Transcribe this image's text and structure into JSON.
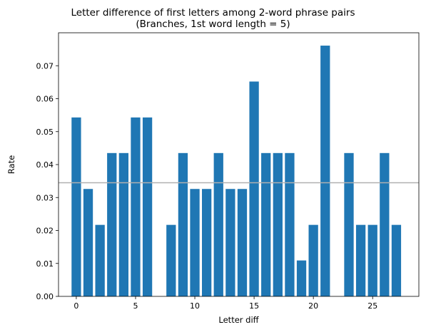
{
  "chart_data": {
    "type": "bar",
    "title_line1": "Letter difference of first letters among 2-word phrase pairs",
    "title_line2": "(Branches, 1st word length = 5)",
    "xlabel": "Letter diff",
    "ylabel": "Rate",
    "x": [
      0,
      1,
      2,
      3,
      4,
      5,
      6,
      7,
      8,
      9,
      10,
      11,
      12,
      13,
      14,
      15,
      16,
      17,
      18,
      19,
      20,
      21,
      22,
      23,
      24,
      25,
      26,
      27
    ],
    "values": [
      0.0543,
      0.0326,
      0.0217,
      0.0435,
      0.0435,
      0.0543,
      0.0543,
      0,
      0.0217,
      0.0435,
      0.0326,
      0.0326,
      0.0435,
      0.0326,
      0.0326,
      0.0652,
      0.0435,
      0.0435,
      0.0435,
      0.0109,
      0.0217,
      0.0761,
      0,
      0.0435,
      0.0217,
      0.0217,
      0.0435,
      0.0217
    ],
    "mean_line": 0.0345,
    "xlim": [
      -1.5,
      28.9
    ],
    "ylim": [
      0,
      0.08
    ],
    "xticks": [
      0,
      5,
      10,
      15,
      20,
      25
    ],
    "xtick_labels": [
      "0",
      "5",
      "10",
      "15",
      "20",
      "25"
    ],
    "yticks": [
      0,
      0.01,
      0.02,
      0.03,
      0.04,
      0.05,
      0.06,
      0.07
    ],
    "ytick_labels": [
      "0.00",
      "0.01",
      "0.02",
      "0.03",
      "0.04",
      "0.05",
      "0.06",
      "0.07"
    ],
    "bar_color": "#1f77b4",
    "mean_line_color": "#b0b0b0",
    "grid": false
  }
}
